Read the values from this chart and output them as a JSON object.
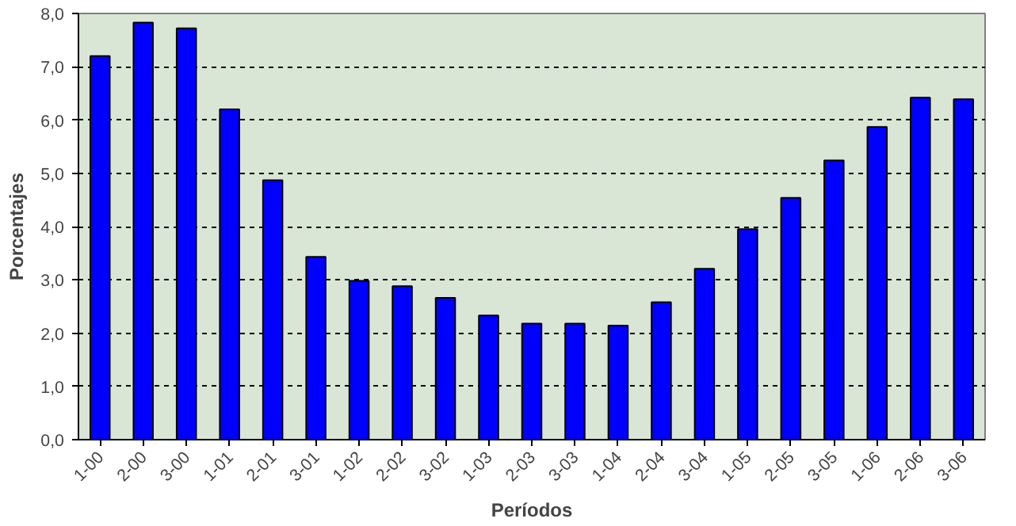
{
  "chart_data": {
    "type": "bar",
    "xlabel": "Períodos",
    "ylabel": "Porcentajes",
    "categories": [
      "1-00",
      "2-00",
      "3-00",
      "1-01",
      "2-01",
      "3-01",
      "1-02",
      "2-02",
      "3-02",
      "1-03",
      "2-03",
      "3-03",
      "1-04",
      "2-04",
      "3-04",
      "1-05",
      "2-05",
      "3-05",
      "1-06",
      "2-06",
      "3-06"
    ],
    "values": [
      7.2,
      7.83,
      7.72,
      6.2,
      4.87,
      3.43,
      2.98,
      2.88,
      2.66,
      2.33,
      2.18,
      2.18,
      2.14,
      2.58,
      3.21,
      3.95,
      4.54,
      5.24,
      5.87,
      6.42,
      6.39
    ],
    "color": "#0000ff",
    "ylim": [
      0,
      8
    ],
    "yticks": [
      {
        "value": 0,
        "label": "0,0"
      },
      {
        "value": 1,
        "label": "1,0"
      },
      {
        "value": 2,
        "label": "2,0"
      },
      {
        "value": 3,
        "label": "3,0"
      },
      {
        "value": 4,
        "label": "4,0"
      },
      {
        "value": 5,
        "label": "5,0"
      },
      {
        "value": 6,
        "label": "6,0"
      },
      {
        "value": 7,
        "label": "7,0"
      },
      {
        "value": 8,
        "label": "8,0"
      }
    ],
    "grid": "y"
  }
}
